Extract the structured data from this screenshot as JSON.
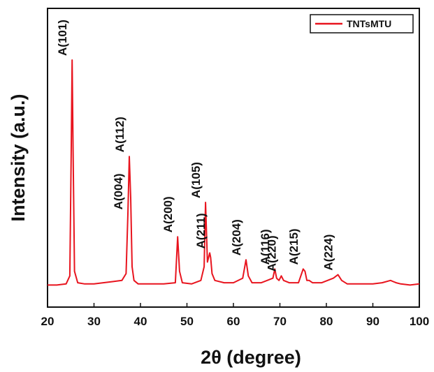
{
  "chart_data": {
    "type": "line",
    "title": "",
    "xlabel": "2θ (degree)",
    "ylabel": "Intensity (a.u.)",
    "xlim": [
      20,
      100
    ],
    "ylim": [
      0,
      100
    ],
    "x_ticks": [
      20,
      30,
      40,
      50,
      60,
      70,
      80,
      90,
      100
    ],
    "y_ticks_visible": false,
    "grid": false,
    "legend_position": "top-right",
    "series": [
      {
        "name": "TNTsMTU",
        "color": "#e8141e",
        "x": [
          20,
          22,
          24,
          24.8,
          25.1,
          25.3,
          25.5,
          25.8,
          26.5,
          28,
          30,
          32,
          34,
          36,
          36.9,
          37.3,
          37.6,
          37.9,
          38.2,
          38.6,
          39.5,
          42,
          45,
          47.5,
          48.0,
          48.4,
          49,
          51,
          53,
          53.7,
          54.0,
          54.4,
          54.9,
          55.1,
          55.4,
          56,
          58,
          60,
          62,
          62.7,
          63.2,
          64,
          66,
          68.5,
          68.9,
          69.3,
          69.8,
          70.3,
          70.8,
          72,
          74,
          75.0,
          75.4,
          75.8,
          76.3,
          77,
          79,
          81.5,
          82.5,
          83.3,
          84.5,
          87,
          90,
          92,
          93.8,
          94.4,
          95,
          96,
          98,
          100
        ],
        "y": [
          2,
          2,
          2.5,
          6,
          60,
          100,
          60,
          8,
          3,
          2.5,
          2.5,
          3,
          3.5,
          4,
          7,
          33,
          58,
          40,
          10,
          4,
          2.5,
          2.5,
          2.5,
          3,
          23,
          8,
          3,
          2.5,
          4,
          10,
          38,
          12,
          16,
          14,
          7,
          4,
          3,
          3,
          5,
          13,
          6,
          3,
          3,
          5,
          9,
          5,
          4,
          6,
          4,
          3,
          3,
          9,
          8,
          4,
          4,
          3,
          3,
          5,
          6.5,
          4,
          2.5,
          2.5,
          2.5,
          3,
          4,
          3.5,
          3,
          2.5,
          2,
          2.5
        ]
      }
    ],
    "annotations": [
      {
        "text": "A(101)",
        "x": 25.3,
        "y": 100
      },
      {
        "text": "A(004)",
        "x": 37.3,
        "y": 33
      },
      {
        "text": "A(112)",
        "x": 37.6,
        "y": 58
      },
      {
        "text": "A(200)",
        "x": 48.0,
        "y": 23
      },
      {
        "text": "A(105)",
        "x": 54.0,
        "y": 38
      },
      {
        "text": "A(211)",
        "x": 55.0,
        "y": 16
      },
      {
        "text": "A(204)",
        "x": 62.7,
        "y": 13
      },
      {
        "text": "A(116)",
        "x": 68.9,
        "y": 9
      },
      {
        "text": "A(220)",
        "x": 70.3,
        "y": 6
      },
      {
        "text": "A(215)",
        "x": 75.0,
        "y": 9
      },
      {
        "text": "A(224)",
        "x": 82.5,
        "y": 6.5
      }
    ]
  }
}
